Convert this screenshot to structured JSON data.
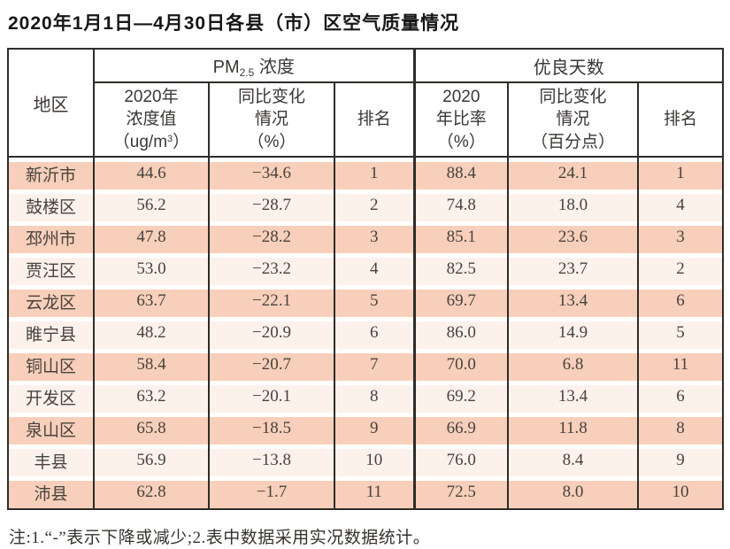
{
  "title": "2020年1月1日—4月30日各县（市）区空气质量情况",
  "table": {
    "region_header": "地区",
    "pm_group": {
      "prefix": "PM",
      "sub": "2.5",
      "suffix": " 浓度"
    },
    "good_days_header": "优良天数",
    "sub_headers": {
      "pm_value": {
        "line1": "2020年",
        "line2": "浓度值",
        "unit_prefix": "（ug/m",
        "unit_sup": "3",
        "unit_suffix": "）"
      },
      "pm_change": {
        "line1": "同比变化",
        "line2": "情况",
        "line3": "（%）"
      },
      "pm_rank": "排名",
      "days_rate": {
        "line1": "2020",
        "line2": "年比率",
        "line3": "（%）"
      },
      "days_change": {
        "line1": "同比变化",
        "line2": "情况",
        "line3": "（百分点）"
      },
      "days_rank": "排名"
    },
    "rows": [
      {
        "region": "新沂市",
        "pm_value": "44.6",
        "pm_change": "−34.6",
        "pm_rank": "1",
        "days_rate": "88.4",
        "days_change": "24.1",
        "days_rank": "1"
      },
      {
        "region": "鼓楼区",
        "pm_value": "56.2",
        "pm_change": "−28.7",
        "pm_rank": "2",
        "days_rate": "74.8",
        "days_change": "18.0",
        "days_rank": "4"
      },
      {
        "region": "邳州市",
        "pm_value": "47.8",
        "pm_change": "−28.2",
        "pm_rank": "3",
        "days_rate": "85.1",
        "days_change": "23.6",
        "days_rank": "3"
      },
      {
        "region": "贾汪区",
        "pm_value": "53.0",
        "pm_change": "−23.2",
        "pm_rank": "4",
        "days_rate": "82.5",
        "days_change": "23.7",
        "days_rank": "2"
      },
      {
        "region": "云龙区",
        "pm_value": "63.7",
        "pm_change": "−22.1",
        "pm_rank": "5",
        "days_rate": "69.7",
        "days_change": "13.4",
        "days_rank": "6"
      },
      {
        "region": "睢宁县",
        "pm_value": "48.2",
        "pm_change": "−20.9",
        "pm_rank": "6",
        "days_rate": "86.0",
        "days_change": "14.9",
        "days_rank": "5"
      },
      {
        "region": "铜山区",
        "pm_value": "58.4",
        "pm_change": "−20.7",
        "pm_rank": "7",
        "days_rate": "70.0",
        "days_change": "6.8",
        "days_rank": "11"
      },
      {
        "region": "开发区",
        "pm_value": "63.2",
        "pm_change": "−20.1",
        "pm_rank": "8",
        "days_rate": "69.2",
        "days_change": "13.4",
        "days_rank": "6"
      },
      {
        "region": "泉山区",
        "pm_value": "65.8",
        "pm_change": "−18.5",
        "pm_rank": "9",
        "days_rate": "66.9",
        "days_change": "11.8",
        "days_rank": "8"
      },
      {
        "region": "丰县",
        "pm_value": "56.9",
        "pm_change": "−13.8",
        "pm_rank": "10",
        "days_rate": "76.0",
        "days_change": "8.4",
        "days_rank": "9"
      },
      {
        "region": "沛县",
        "pm_value": "62.8",
        "pm_change": "−1.7",
        "pm_rank": "11",
        "days_rate": "72.5",
        "days_change": "8.0",
        "days_rank": "10"
      }
    ]
  },
  "footnote": "注:1.“-”表示下降或减少;2.表中数据采用实况数据统计。",
  "colors": {
    "row_odd": "#f8cfba",
    "row_even": "#fdf1ec",
    "border": "#2f2c29",
    "text": "#47433e"
  }
}
